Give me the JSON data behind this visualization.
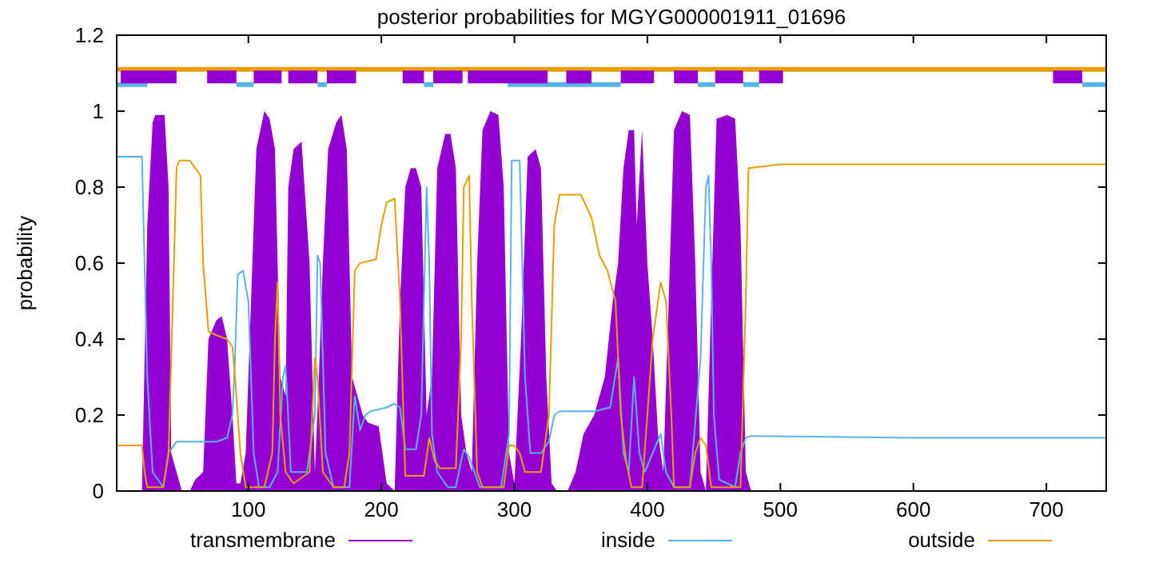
{
  "chart_data": {
    "type": "line",
    "title": "posterior probabilities for MGYG000001911_01696",
    "ylabel": "probability",
    "xlim": [
      1,
      745
    ],
    "ylim": [
      0,
      1.2
    ],
    "xticks": [
      100,
      200,
      300,
      400,
      500,
      600,
      700
    ],
    "yticks": [
      0,
      0.2,
      0.4,
      0.6,
      0.8,
      1,
      1.2
    ],
    "grid": false,
    "legend": "bottom",
    "marker": "none",
    "line_style": "solid",
    "series": [
      {
        "name": "transmembrane",
        "type": "area",
        "color": "#9400d3",
        "x": [
          1,
          20,
          24,
          28,
          30,
          37,
          40,
          42,
          46,
          50,
          56,
          60,
          66,
          70,
          76,
          80,
          84,
          88,
          91,
          94,
          98,
          102,
          106,
          112,
          116,
          120,
          124,
          128,
          130,
          134,
          140,
          146,
          150,
          153,
          156,
          160,
          166,
          170,
          174,
          178,
          182,
          186,
          190,
          198,
          204,
          210,
          214,
          218,
          222,
          226,
          230,
          234,
          238,
          242,
          248,
          252,
          256,
          260,
          264,
          268,
          272,
          276,
          282,
          288,
          292,
          296,
          300,
          305,
          310,
          316,
          320,
          324,
          328,
          332,
          340,
          346,
          352,
          360,
          368,
          374,
          378,
          382,
          386,
          390,
          392,
          396,
          400,
          404,
          408,
          412,
          416,
          420,
          426,
          432,
          436,
          440,
          444,
          448,
          452,
          460,
          466,
          470,
          474,
          478,
          745
        ],
        "values": [
          0,
          0,
          0.7,
          0.97,
          0.99,
          0.99,
          0.8,
          0.1,
          0.05,
          0,
          0,
          0.03,
          0.05,
          0.4,
          0.45,
          0.46,
          0.4,
          0.2,
          0.02,
          0.02,
          0.1,
          0.5,
          0.9,
          1,
          0.98,
          0.9,
          0.3,
          0.25,
          0.8,
          0.9,
          0.92,
          0.6,
          0.05,
          0.3,
          0.6,
          0.9,
          0.97,
          0.99,
          0.9,
          0.3,
          0.25,
          0.2,
          0.18,
          0.17,
          0.02,
          0,
          0.5,
          0.8,
          0.85,
          0.85,
          0.8,
          0.2,
          0.3,
          0.85,
          0.94,
          0.94,
          0.85,
          0.2,
          0.1,
          0.05,
          0.6,
          0.95,
          1,
          0.99,
          0.8,
          0.1,
          0.02,
          0.4,
          0.88,
          0.9,
          0.85,
          0.3,
          0.02,
          0,
          0,
          0.05,
          0.15,
          0.2,
          0.3,
          0.5,
          0.6,
          0.85,
          0.95,
          0.95,
          0.7,
          0.95,
          0.6,
          0.4,
          0.15,
          0.05,
          0.5,
          0.95,
          1,
          0.99,
          0.6,
          0.05,
          0,
          0.5,
          0.98,
          0.99,
          0.98,
          0.7,
          0.05,
          0,
          0
        ]
      },
      {
        "name": "inside",
        "color": "#56b4e9",
        "x": [
          1,
          20,
          24,
          28,
          36,
          40,
          46,
          60,
          76,
          84,
          88,
          90,
          92,
          96,
          100,
          104,
          108,
          116,
          122,
          126,
          128,
          132,
          144,
          150,
          152,
          154,
          158,
          164,
          176,
          180,
          184,
          188,
          192,
          204,
          210,
          214,
          218,
          226,
          230,
          234,
          236,
          238,
          242,
          250,
          256,
          260,
          262,
          266,
          270,
          274,
          290,
          296,
          298,
          304,
          308,
          312,
          320,
          326,
          330,
          334,
          360,
          372,
          378,
          382,
          386,
          390,
          394,
          398,
          404,
          410,
          414,
          420,
          432,
          440,
          444,
          446,
          448,
          450,
          454,
          466,
          470,
          474,
          478,
          600,
          745
        ],
        "values": [
          0.88,
          0.88,
          0.3,
          0.05,
          0.01,
          0.1,
          0.13,
          0.13,
          0.13,
          0.14,
          0.2,
          0.35,
          0.57,
          0.58,
          0.5,
          0.1,
          0.01,
          0.01,
          0.05,
          0.3,
          0.33,
          0.05,
          0.05,
          0.2,
          0.62,
          0.6,
          0.1,
          0.01,
          0.01,
          0.25,
          0.16,
          0.2,
          0.21,
          0.22,
          0.23,
          0.22,
          0.11,
          0.11,
          0.2,
          0.8,
          0.6,
          0.15,
          0.05,
          0.01,
          0.01,
          0.08,
          0.11,
          0.09,
          0.05,
          0.01,
          0.01,
          0.15,
          0.87,
          0.87,
          0.3,
          0.1,
          0.1,
          0.13,
          0.2,
          0.21,
          0.21,
          0.22,
          0.35,
          0.1,
          0.05,
          0.3,
          0.1,
          0.05,
          0.1,
          0.15,
          0.05,
          0.01,
          0.01,
          0.35,
          0.8,
          0.83,
          0.6,
          0.2,
          0.03,
          0.01,
          0.1,
          0.14,
          0.145,
          0.14,
          0.14
        ]
      },
      {
        "name": "outside",
        "color": "#e69f00",
        "x": [
          1,
          20,
          22,
          24,
          36,
          40,
          44,
          46,
          48,
          56,
          60,
          64,
          66,
          70,
          76,
          84,
          88,
          90,
          94,
          98,
          112,
          118,
          120,
          122,
          124,
          128,
          134,
          146,
          150,
          152,
          156,
          164,
          172,
          176,
          180,
          184,
          196,
          200,
          204,
          210,
          214,
          218,
          232,
          236,
          240,
          244,
          256,
          260,
          262,
          266,
          268,
          272,
          276,
          292,
          296,
          300,
          304,
          308,
          320,
          326,
          330,
          334,
          350,
          358,
          364,
          370,
          376,
          380,
          384,
          388,
          396,
          400,
          404,
          410,
          414,
          418,
          420,
          432,
          436,
          440,
          444,
          448,
          470,
          474,
          476,
          500,
          745
        ],
        "values": [
          0.12,
          0.12,
          0.05,
          0.01,
          0.01,
          0.1,
          0.6,
          0.85,
          0.87,
          0.87,
          0.85,
          0.83,
          0.6,
          0.42,
          0.41,
          0.4,
          0.38,
          0.3,
          0.1,
          0.01,
          0.01,
          0.1,
          0.4,
          0.55,
          0.2,
          0.05,
          0.02,
          0.05,
          0.35,
          0.3,
          0.05,
          0.01,
          0.01,
          0.1,
          0.58,
          0.6,
          0.61,
          0.7,
          0.76,
          0.77,
          0.5,
          0.04,
          0.04,
          0.14,
          0.08,
          0.06,
          0.06,
          0.4,
          0.8,
          0.83,
          0.5,
          0.05,
          0.01,
          0.01,
          0.12,
          0.12,
          0.1,
          0.05,
          0.05,
          0.2,
          0.7,
          0.78,
          0.78,
          0.72,
          0.62,
          0.58,
          0.5,
          0.2,
          0.08,
          0.01,
          0.01,
          0.2,
          0.4,
          0.55,
          0.5,
          0.2,
          0.01,
          0.01,
          0.1,
          0.14,
          0.12,
          0.01,
          0.01,
          0.5,
          0.85,
          0.86,
          0.86
        ]
      },
      {
        "type": "line",
        "color": "#e69f00",
        "x": [
          1,
          745
        ],
        "values": [
          1.11,
          1.11
        ]
      },
      {
        "type": "line",
        "color": "#56b4e9",
        "x": [
          1,
          24,
          30,
          91,
          104,
          110,
          152,
          159,
          170,
          232,
          239,
          250,
          295,
          380,
          385,
          438,
          451,
          460,
          472,
          484,
          490,
          727,
          745
        ],
        "values": [
          1.07,
          1.07,
          null,
          1.07,
          1.07,
          null,
          1.07,
          1.07,
          null,
          1.07,
          1.07,
          null,
          1.07,
          1.07,
          null,
          1.07,
          1.07,
          null,
          1.07,
          1.07,
          null,
          1.07,
          1.07
        ]
      },
      {
        "type": "line",
        "color": "#9400d3",
        "x": [
          4,
          46,
          50,
          69,
          91,
          95,
          104,
          125,
          127,
          130,
          152,
          155,
          159,
          181,
          190,
          216,
          232,
          235,
          239,
          261,
          263,
          265,
          325,
          330,
          339,
          358,
          370,
          380,
          405,
          410,
          420,
          438,
          445,
          451,
          472,
          478,
          484,
          502,
          600,
          705,
          727
        ],
        "values": [
          1.09,
          1.09,
          null,
          1.09,
          1.09,
          null,
          1.09,
          1.09,
          null,
          1.09,
          1.09,
          null,
          1.09,
          1.09,
          null,
          1.09,
          1.09,
          null,
          1.09,
          1.09,
          null,
          1.09,
          1.09,
          null,
          1.09,
          1.09,
          null,
          1.09,
          1.09,
          null,
          1.09,
          1.09,
          null,
          1.09,
          1.09,
          null,
          1.09,
          1.09,
          null,
          1.09,
          1.09
        ]
      }
    ]
  }
}
